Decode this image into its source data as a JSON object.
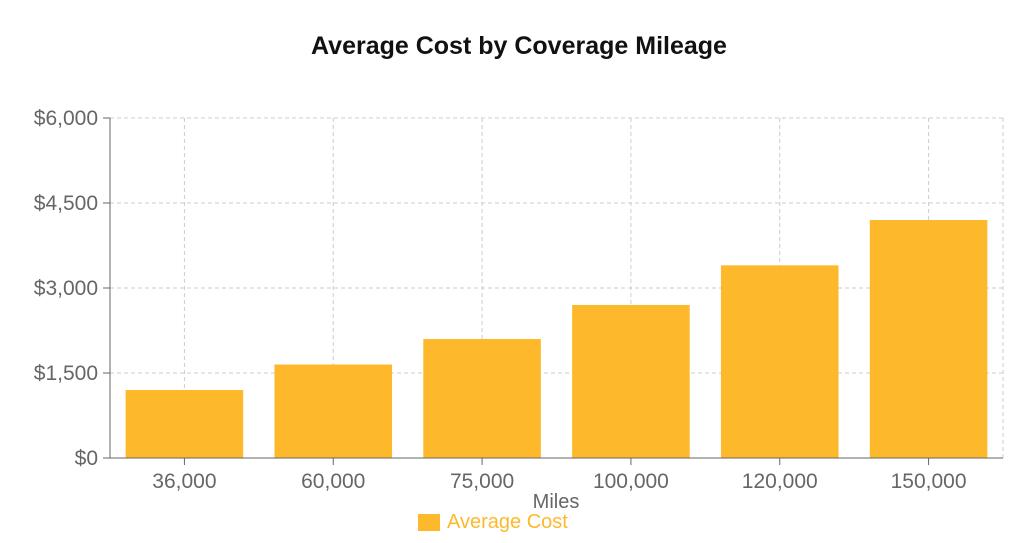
{
  "chart_data": {
    "type": "bar",
    "title": "Average Cost by Coverage Mileage",
    "xlabel": "Miles",
    "ylabel": "",
    "categories": [
      "36,000",
      "60,000",
      "75,000",
      "100,000",
      "120,000",
      "150,000"
    ],
    "series": [
      {
        "name": "Average Cost",
        "values": [
          1200,
          1650,
          2100,
          2700,
          3400,
          4200
        ]
      }
    ],
    "ylim": [
      0,
      6000
    ],
    "yticks": [
      0,
      1500,
      3000,
      4500,
      6000
    ],
    "ytick_labels": [
      "$0",
      "$1,500",
      "$3,000",
      "$4,500",
      "$6,000"
    ],
    "grid": true,
    "legend_position": "bottom",
    "colors": {
      "bar": "#fdb92b",
      "grid": "#cccccc",
      "axis": "#666666",
      "title": "#111111"
    }
  }
}
